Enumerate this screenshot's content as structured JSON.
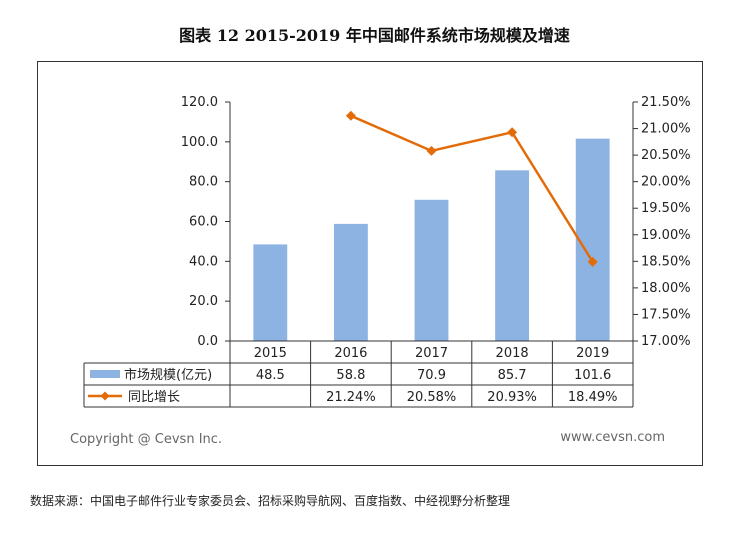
{
  "title": "图表 12  2015-2019 年中国邮件系统市场规模及增速",
  "copyright": "Copyright @ Cevsn Inc.",
  "website": "www.cevsn.com",
  "source": "数据来源：中国电子邮件行业专家委员会、招标采购导航网、百度指数、中经视野分析整理",
  "colors": {
    "bar": "#8db3e2",
    "line": "#e36c09",
    "axis": "#333333"
  },
  "chart_data": {
    "type": "bar",
    "categories": [
      "2015",
      "2016",
      "2017",
      "2018",
      "2019"
    ],
    "series": [
      {
        "name": "市场规模(亿元)",
        "type": "bar",
        "axis": "left",
        "values": [
          48.5,
          58.8,
          70.9,
          85.7,
          101.6
        ],
        "labels": [
          "48.5",
          "58.8",
          "70.9",
          "85.7",
          "101.6"
        ]
      },
      {
        "name": "同比增长",
        "type": "line",
        "axis": "right",
        "values": [
          null,
          21.24,
          20.58,
          20.93,
          18.49
        ],
        "labels": [
          "",
          "21.24%",
          "20.58%",
          "20.93%",
          "18.49%"
        ]
      }
    ],
    "y_left": {
      "ylim": [
        0,
        120
      ],
      "ticks": [
        "0.0",
        "20.0",
        "40.0",
        "60.0",
        "80.0",
        "100.0",
        "120.0"
      ]
    },
    "y_right": {
      "ylim": [
        17.0,
        21.5
      ],
      "ticks": [
        "17.00%",
        "17.50%",
        "18.00%",
        "18.50%",
        "19.00%",
        "19.50%",
        "20.00%",
        "20.50%",
        "21.00%",
        "21.50%"
      ]
    },
    "legend": "data-table",
    "grid": false
  }
}
